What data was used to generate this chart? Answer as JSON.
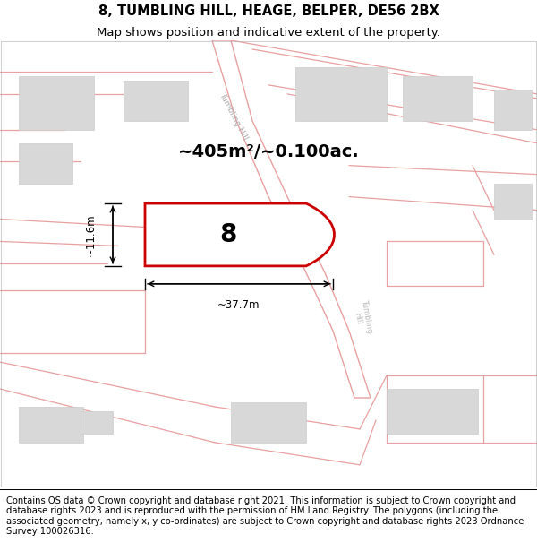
{
  "title_line1": "8, TUMBLING HILL, HEAGE, BELPER, DE56 2BX",
  "title_line2": "Map shows position and indicative extent of the property.",
  "footer": "Contains OS data © Crown copyright and database right 2021. This information is subject to Crown copyright and database rights 2023 and is reproduced with the permission of HM Land Registry. The polygons (including the associated geometry, namely x, y co-ordinates) are subject to Crown copyright and database rights 2023 Ordnance Survey 100026316.",
  "area_label": "~405m²/~0.100ac.",
  "plot_number": "8",
  "dim_width": "~37.7m",
  "dim_height": "~11.6m",
  "map_bg": "#ffffff",
  "building_color": "#d8d8d8",
  "building_edge": "#cccccc",
  "highlight_color": "#cc0000",
  "road_line_color": "#e8a0a0",
  "title_fontsize": 10.5,
  "subtitle_fontsize": 9.5,
  "footer_fontsize": 7.2,
  "area_fontsize": 14,
  "number_fontsize": 20,
  "dim_fontsize": 8.5
}
